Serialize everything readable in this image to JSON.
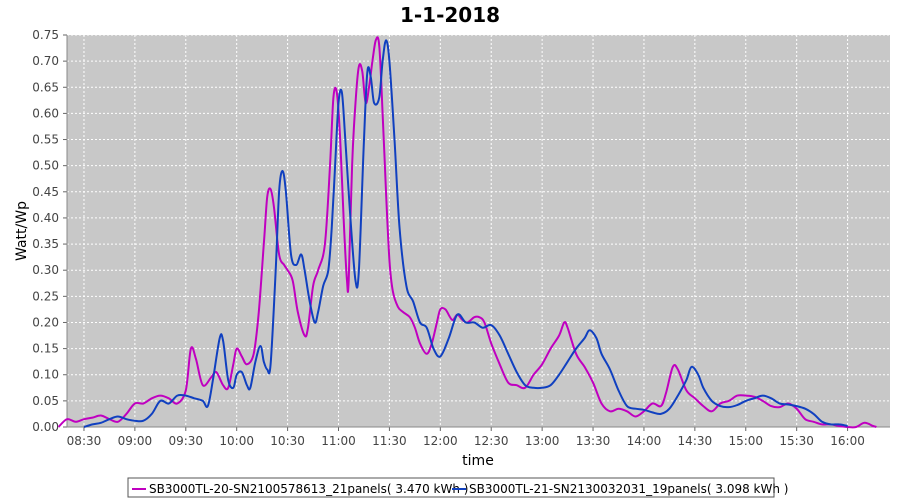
{
  "chart_data": {
    "type": "line",
    "title": "1-1-2018",
    "xlabel": "time",
    "ylabel": "Watt/Wp",
    "x_ticks": [
      "08:30",
      "09:00",
      "09:30",
      "10:00",
      "10:30",
      "11:00",
      "11:30",
      "12:00",
      "12:30",
      "13:00",
      "13:30",
      "14:00",
      "14:30",
      "15:00",
      "15:30",
      "16:00"
    ],
    "y_ticks": [
      "0.00",
      "0.05",
      "0.10",
      "0.15",
      "0.20",
      "0.25",
      "0.30",
      "0.35",
      "0.40",
      "0.45",
      "0.50",
      "0.55",
      "0.60",
      "0.65",
      "0.70",
      "0.75"
    ],
    "xlim": [
      "08:20",
      "16:25"
    ],
    "ylim": [
      0,
      0.75
    ],
    "grid": true,
    "legend_position": "bottom",
    "colors": {
      "plot_background": "#c8c8c8",
      "series1": "#c000c0",
      "series2": "#1040c0",
      "gridline": "#ffffff"
    },
    "series": [
      {
        "name": "SB3000TL-20-SN2100578613_21panels( 3.470 kWh )",
        "color": "#c000c0",
        "points": [
          [
            "08:15",
            0.0
          ],
          [
            "08:20",
            0.015
          ],
          [
            "08:25",
            0.01
          ],
          [
            "08:30",
            0.015
          ],
          [
            "08:35",
            0.018
          ],
          [
            "08:40",
            0.022
          ],
          [
            "08:45",
            0.015
          ],
          [
            "08:50",
            0.01
          ],
          [
            "08:55",
            0.025
          ],
          [
            "09:00",
            0.045
          ],
          [
            "09:05",
            0.045
          ],
          [
            "09:10",
            0.055
          ],
          [
            "09:15",
            0.06
          ],
          [
            "09:20",
            0.055
          ],
          [
            "09:25",
            0.045
          ],
          [
            "09:30",
            0.07
          ],
          [
            "09:33",
            0.15
          ],
          [
            "09:36",
            0.13
          ],
          [
            "09:40",
            0.08
          ],
          [
            "09:45",
            0.095
          ],
          [
            "09:48",
            0.105
          ],
          [
            "09:52",
            0.08
          ],
          [
            "09:55",
            0.075
          ],
          [
            "09:58",
            0.12
          ],
          [
            "10:00",
            0.15
          ],
          [
            "10:03",
            0.135
          ],
          [
            "10:06",
            0.12
          ],
          [
            "10:10",
            0.14
          ],
          [
            "10:13",
            0.22
          ],
          [
            "10:16",
            0.35
          ],
          [
            "10:18",
            0.44
          ],
          [
            "10:20",
            0.455
          ],
          [
            "10:22",
            0.42
          ],
          [
            "10:25",
            0.33
          ],
          [
            "10:28",
            0.31
          ],
          [
            "10:30",
            0.3
          ],
          [
            "10:33",
            0.28
          ],
          [
            "10:36",
            0.22
          ],
          [
            "10:40",
            0.175
          ],
          [
            "10:42",
            0.19
          ],
          [
            "10:45",
            0.27
          ],
          [
            "10:48",
            0.3
          ],
          [
            "10:52",
            0.35
          ],
          [
            "10:55",
            0.5
          ],
          [
            "10:57",
            0.63
          ],
          [
            "10:59",
            0.64
          ],
          [
            "11:01",
            0.55
          ],
          [
            "11:03",
            0.4
          ],
          [
            "11:05",
            0.28
          ],
          [
            "11:06",
            0.28
          ],
          [
            "11:08",
            0.5
          ],
          [
            "11:10",
            0.62
          ],
          [
            "11:12",
            0.69
          ],
          [
            "11:14",
            0.68
          ],
          [
            "11:16",
            0.62
          ],
          [
            "11:18",
            0.65
          ],
          [
            "11:20",
            0.7
          ],
          [
            "11:22",
            0.74
          ],
          [
            "11:24",
            0.73
          ],
          [
            "11:26",
            0.6
          ],
          [
            "11:28",
            0.45
          ],
          [
            "11:30",
            0.32
          ],
          [
            "11:32",
            0.26
          ],
          [
            "11:35",
            0.23
          ],
          [
            "11:38",
            0.22
          ],
          [
            "11:42",
            0.21
          ],
          [
            "11:45",
            0.19
          ],
          [
            "11:48",
            0.16
          ],
          [
            "11:52",
            0.14
          ],
          [
            "11:55",
            0.16
          ],
          [
            "11:58",
            0.2
          ],
          [
            "12:00",
            0.225
          ],
          [
            "12:03",
            0.225
          ],
          [
            "12:07",
            0.205
          ],
          [
            "12:10",
            0.215
          ],
          [
            "12:13",
            0.205
          ],
          [
            "12:16",
            0.2
          ],
          [
            "12:20",
            0.21
          ],
          [
            "12:23",
            0.21
          ],
          [
            "12:26",
            0.2
          ],
          [
            "12:30",
            0.16
          ],
          [
            "12:35",
            0.12
          ],
          [
            "12:40",
            0.085
          ],
          [
            "12:45",
            0.08
          ],
          [
            "12:50",
            0.075
          ],
          [
            "12:55",
            0.1
          ],
          [
            "13:00",
            0.12
          ],
          [
            "13:05",
            0.15
          ],
          [
            "13:10",
            0.175
          ],
          [
            "13:13",
            0.2
          ],
          [
            "13:15",
            0.19
          ],
          [
            "13:20",
            0.14
          ],
          [
            "13:25",
            0.115
          ],
          [
            "13:30",
            0.085
          ],
          [
            "13:35",
            0.045
          ],
          [
            "13:40",
            0.03
          ],
          [
            "13:45",
            0.035
          ],
          [
            "13:50",
            0.03
          ],
          [
            "13:55",
            0.02
          ],
          [
            "14:00",
            0.03
          ],
          [
            "14:05",
            0.045
          ],
          [
            "14:10",
            0.04
          ],
          [
            "14:13",
            0.065
          ],
          [
            "14:17",
            0.115
          ],
          [
            "14:20",
            0.11
          ],
          [
            "14:25",
            0.07
          ],
          [
            "14:30",
            0.055
          ],
          [
            "14:35",
            0.04
          ],
          [
            "14:40",
            0.03
          ],
          [
            "14:45",
            0.045
          ],
          [
            "14:50",
            0.05
          ],
          [
            "14:55",
            0.06
          ],
          [
            "15:00",
            0.06
          ],
          [
            "15:05",
            0.058
          ],
          [
            "15:10",
            0.05
          ],
          [
            "15:15",
            0.04
          ],
          [
            "15:20",
            0.038
          ],
          [
            "15:25",
            0.045
          ],
          [
            "15:30",
            0.035
          ],
          [
            "15:35",
            0.015
          ],
          [
            "15:40",
            0.01
          ],
          [
            "15:45",
            0.005
          ],
          [
            "15:50",
            0.005
          ],
          [
            "15:55",
            0.002
          ],
          [
            "16:00",
            0.0
          ],
          [
            "16:05",
            0.0
          ],
          [
            "16:10",
            0.008
          ],
          [
            "16:15",
            0.002
          ],
          [
            "16:17",
            0.0
          ]
        ]
      },
      {
        "name": "SB3000TL-21-SN2130032031_19panels( 3.098 kWh )",
        "color": "#1040c0",
        "points": [
          [
            "08:30",
            0.0
          ],
          [
            "08:35",
            0.005
          ],
          [
            "08:40",
            0.008
          ],
          [
            "08:45",
            0.015
          ],
          [
            "08:50",
            0.02
          ],
          [
            "08:55",
            0.015
          ],
          [
            "09:00",
            0.012
          ],
          [
            "09:05",
            0.012
          ],
          [
            "09:10",
            0.025
          ],
          [
            "09:15",
            0.05
          ],
          [
            "09:20",
            0.045
          ],
          [
            "09:25",
            0.06
          ],
          [
            "09:30",
            0.06
          ],
          [
            "09:35",
            0.055
          ],
          [
            "09:40",
            0.05
          ],
          [
            "09:43",
            0.04
          ],
          [
            "09:46",
            0.09
          ],
          [
            "09:50",
            0.17
          ],
          [
            "09:52",
            0.165
          ],
          [
            "09:55",
            0.09
          ],
          [
            "09:58",
            0.075
          ],
          [
            "10:00",
            0.1
          ],
          [
            "10:03",
            0.105
          ],
          [
            "10:06",
            0.08
          ],
          [
            "10:08",
            0.075
          ],
          [
            "10:11",
            0.125
          ],
          [
            "10:14",
            0.155
          ],
          [
            "10:16",
            0.125
          ],
          [
            "10:18",
            0.11
          ],
          [
            "10:20",
            0.12
          ],
          [
            "10:23",
            0.3
          ],
          [
            "10:25",
            0.45
          ],
          [
            "10:27",
            0.49
          ],
          [
            "10:29",
            0.45
          ],
          [
            "10:32",
            0.33
          ],
          [
            "10:35",
            0.31
          ],
          [
            "10:38",
            0.33
          ],
          [
            "10:40",
            0.3
          ],
          [
            "10:43",
            0.24
          ],
          [
            "10:46",
            0.2
          ],
          [
            "10:48",
            0.22
          ],
          [
            "10:51",
            0.27
          ],
          [
            "10:54",
            0.3
          ],
          [
            "10:56",
            0.38
          ],
          [
            "10:58",
            0.5
          ],
          [
            "11:00",
            0.62
          ],
          [
            "11:02",
            0.64
          ],
          [
            "11:04",
            0.55
          ],
          [
            "11:07",
            0.4
          ],
          [
            "11:10",
            0.28
          ],
          [
            "11:12",
            0.3
          ],
          [
            "11:15",
            0.55
          ],
          [
            "11:17",
            0.68
          ],
          [
            "11:19",
            0.67
          ],
          [
            "11:21",
            0.62
          ],
          [
            "11:24",
            0.63
          ],
          [
            "11:26",
            0.7
          ],
          [
            "11:28",
            0.74
          ],
          [
            "11:30",
            0.7
          ],
          [
            "11:33",
            0.55
          ],
          [
            "11:36",
            0.38
          ],
          [
            "11:40",
            0.27
          ],
          [
            "11:44",
            0.24
          ],
          [
            "11:48",
            0.2
          ],
          [
            "11:52",
            0.19
          ],
          [
            "11:56",
            0.15
          ],
          [
            "12:00",
            0.135
          ],
          [
            "12:05",
            0.17
          ],
          [
            "12:10",
            0.215
          ],
          [
            "12:15",
            0.2
          ],
          [
            "12:20",
            0.2
          ],
          [
            "12:25",
            0.19
          ],
          [
            "12:30",
            0.195
          ],
          [
            "12:35",
            0.175
          ],
          [
            "12:40",
            0.14
          ],
          [
            "12:45",
            0.105
          ],
          [
            "12:50",
            0.08
          ],
          [
            "12:55",
            0.075
          ],
          [
            "13:00",
            0.075
          ],
          [
            "13:05",
            0.08
          ],
          [
            "13:10",
            0.1
          ],
          [
            "13:15",
            0.125
          ],
          [
            "13:20",
            0.15
          ],
          [
            "13:25",
            0.17
          ],
          [
            "13:28",
            0.185
          ],
          [
            "13:32",
            0.17
          ],
          [
            "13:35",
            0.14
          ],
          [
            "13:40",
            0.11
          ],
          [
            "13:45",
            0.07
          ],
          [
            "13:50",
            0.04
          ],
          [
            "13:55",
            0.035
          ],
          [
            "14:00",
            0.033
          ],
          [
            "14:05",
            0.028
          ],
          [
            "14:10",
            0.025
          ],
          [
            "14:15",
            0.035
          ],
          [
            "14:20",
            0.06
          ],
          [
            "14:25",
            0.09
          ],
          [
            "14:28",
            0.115
          ],
          [
            "14:32",
            0.1
          ],
          [
            "14:35",
            0.075
          ],
          [
            "14:40",
            0.05
          ],
          [
            "14:45",
            0.04
          ],
          [
            "14:50",
            0.038
          ],
          [
            "14:55",
            0.042
          ],
          [
            "15:00",
            0.05
          ],
          [
            "15:05",
            0.055
          ],
          [
            "15:10",
            0.06
          ],
          [
            "15:15",
            0.055
          ],
          [
            "15:20",
            0.045
          ],
          [
            "15:25",
            0.043
          ],
          [
            "15:30",
            0.04
          ],
          [
            "15:35",
            0.035
          ],
          [
            "15:40",
            0.025
          ],
          [
            "15:45",
            0.01
          ],
          [
            "15:50",
            0.005
          ],
          [
            "15:55",
            0.005
          ],
          [
            "16:00",
            0.002
          ]
        ]
      }
    ]
  }
}
